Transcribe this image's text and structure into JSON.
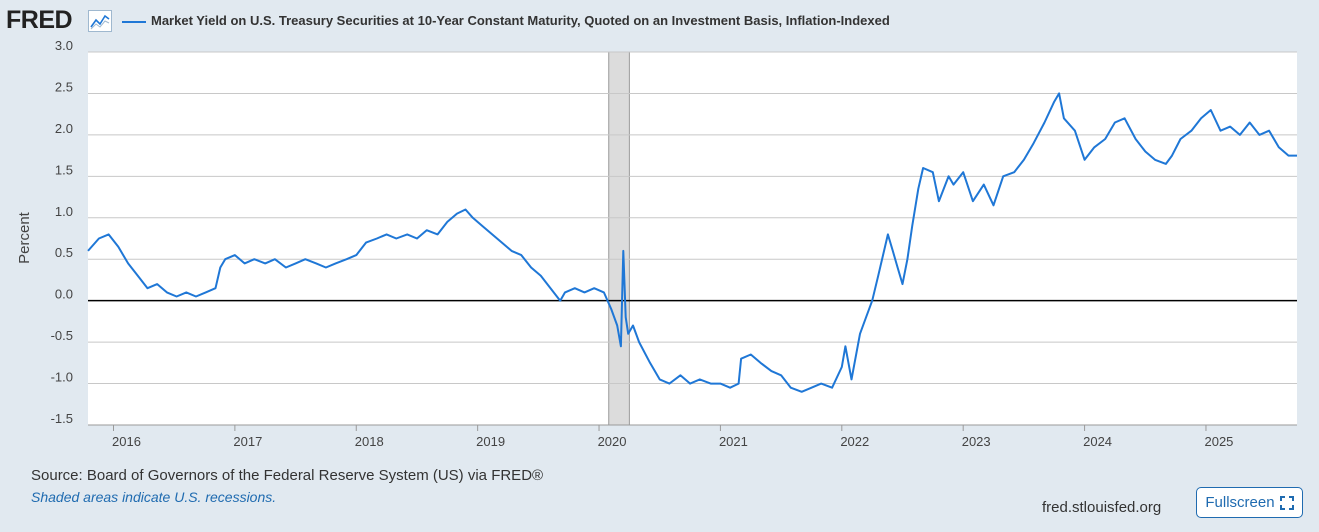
{
  "header": {
    "logo_text": "FRED",
    "logo_icon": "line-chart-icon",
    "series_title": "Market Yield on U.S. Treasury Securities at 10-Year Constant Maturity, Quoted on an Investment Basis, Inflation-Indexed"
  },
  "footer": {
    "source": "Source: Board of Governors of the Federal Reserve System (US) via FRED®",
    "note": "Shaded areas indicate U.S. recessions.",
    "url": "fred.stlouisfed.org",
    "fullscreen_label": "Fullscreen",
    "fullscreen_icon": "expand-icon"
  },
  "colors": {
    "page_bg": "#e1e9f0",
    "plot_bg": "#ffffff",
    "series": "#1f77d6",
    "grid": "#c8c8c8",
    "zero_line": "#000000",
    "recession": "#dcdcdc",
    "link": "#1f6bb0"
  },
  "chart_data": {
    "type": "line",
    "title": "Market Yield on U.S. Treasury Securities at 10-Year Constant Maturity, Quoted on an Investment Basis, Inflation-Indexed",
    "xlabel": "",
    "ylabel": "Percent",
    "xlim": [
      2015.79,
      2025.75
    ],
    "ylim": [
      -1.5,
      3.0
    ],
    "y_ticks": [
      3.0,
      2.5,
      2.0,
      1.5,
      1.0,
      0.5,
      0.0,
      -0.5,
      -1.0,
      -1.5
    ],
    "y_tick_labels": [
      "3.0",
      "2.5",
      "2.0",
      "1.5",
      "1.0",
      "0.5",
      "0.0",
      "-0.5",
      "-1.0",
      "-1.5"
    ],
    "x_ticks": [
      2016,
      2017,
      2018,
      2019,
      2020,
      2021,
      2022,
      2023,
      2024,
      2025
    ],
    "x_tick_labels": [
      "2016",
      "2017",
      "2018",
      "2019",
      "2020",
      "2021",
      "2022",
      "2023",
      "2024",
      "2025"
    ],
    "grid": true,
    "reference_line_y": 0.0,
    "recessions": [
      {
        "start": 2020.08,
        "end": 2020.25
      }
    ],
    "series": [
      {
        "name": "Market Yield on U.S. Treasury Securities at 10-Year Constant Maturity, Quoted on an Investment Basis, Inflation-Indexed",
        "x": [
          2015.79,
          2015.88,
          2015.96,
          2016.04,
          2016.12,
          2016.2,
          2016.28,
          2016.36,
          2016.44,
          2016.52,
          2016.6,
          2016.68,
          2016.76,
          2016.84,
          2016.88,
          2016.92,
          2017.0,
          2017.08,
          2017.16,
          2017.25,
          2017.33,
          2017.42,
          2017.5,
          2017.58,
          2017.67,
          2017.75,
          2017.83,
          2017.92,
          2018.0,
          2018.08,
          2018.17,
          2018.25,
          2018.33,
          2018.42,
          2018.5,
          2018.58,
          2018.67,
          2018.75,
          2018.83,
          2018.9,
          2018.96,
          2019.04,
          2019.12,
          2019.2,
          2019.28,
          2019.36,
          2019.44,
          2019.52,
          2019.6,
          2019.68,
          2019.72,
          2019.8,
          2019.88,
          2019.96,
          2020.04,
          2020.1,
          2020.15,
          2020.18,
          2020.2,
          2020.22,
          2020.24,
          2020.28,
          2020.33,
          2020.42,
          2020.5,
          2020.58,
          2020.67,
          2020.75,
          2020.83,
          2020.92,
          2021.0,
          2021.08,
          2021.15,
          2021.17,
          2021.25,
          2021.33,
          2021.42,
          2021.5,
          2021.58,
          2021.67,
          2021.75,
          2021.83,
          2021.92,
          2022.0,
          2022.03,
          2022.08,
          2022.15,
          2022.2,
          2022.25,
          2022.3,
          2022.38,
          2022.42,
          2022.46,
          2022.5,
          2022.54,
          2022.58,
          2022.63,
          2022.67,
          2022.75,
          2022.8,
          2022.88,
          2022.92,
          2023.0,
          2023.08,
          2023.17,
          2023.25,
          2023.33,
          2023.42,
          2023.5,
          2023.58,
          2023.67,
          2023.75,
          2023.79,
          2023.83,
          2023.92,
          2024.0,
          2024.08,
          2024.17,
          2024.25,
          2024.33,
          2024.42,
          2024.5,
          2024.58,
          2024.67,
          2024.72,
          2024.79,
          2024.88,
          2024.96,
          2025.04,
          2025.12,
          2025.2,
          2025.28,
          2025.36,
          2025.44,
          2025.52,
          2025.6,
          2025.68,
          2025.75
        ],
        "values": [
          0.6,
          0.75,
          0.8,
          0.65,
          0.45,
          0.3,
          0.15,
          0.2,
          0.1,
          0.05,
          0.1,
          0.05,
          0.1,
          0.15,
          0.4,
          0.5,
          0.55,
          0.45,
          0.5,
          0.45,
          0.5,
          0.4,
          0.45,
          0.5,
          0.45,
          0.4,
          0.45,
          0.5,
          0.55,
          0.7,
          0.75,
          0.8,
          0.75,
          0.8,
          0.75,
          0.85,
          0.8,
          0.95,
          1.05,
          1.1,
          1.0,
          0.9,
          0.8,
          0.7,
          0.6,
          0.55,
          0.4,
          0.3,
          0.15,
          0.0,
          0.1,
          0.15,
          0.1,
          0.15,
          0.1,
          -0.1,
          -0.3,
          -0.55,
          0.6,
          -0.2,
          -0.4,
          -0.3,
          -0.5,
          -0.75,
          -0.95,
          -1.0,
          -0.9,
          -1.0,
          -0.95,
          -1.0,
          -1.0,
          -1.05,
          -1.0,
          -0.7,
          -0.65,
          -0.75,
          -0.85,
          -0.9,
          -1.05,
          -1.1,
          -1.05,
          -1.0,
          -1.05,
          -0.8,
          -0.55,
          -0.95,
          -0.4,
          -0.2,
          0.0,
          0.3,
          0.8,
          0.6,
          0.4,
          0.2,
          0.5,
          0.9,
          1.35,
          1.6,
          1.55,
          1.2,
          1.5,
          1.4,
          1.55,
          1.2,
          1.4,
          1.15,
          1.5,
          1.55,
          1.7,
          1.9,
          2.15,
          2.4,
          2.5,
          2.2,
          2.05,
          1.7,
          1.85,
          1.95,
          2.15,
          2.2,
          1.95,
          1.8,
          1.7,
          1.65,
          1.75,
          1.95,
          2.05,
          2.2,
          2.3,
          2.05,
          2.1,
          2.0,
          2.15,
          2.0,
          2.05,
          1.85,
          1.75,
          1.75
        ]
      }
    ]
  }
}
